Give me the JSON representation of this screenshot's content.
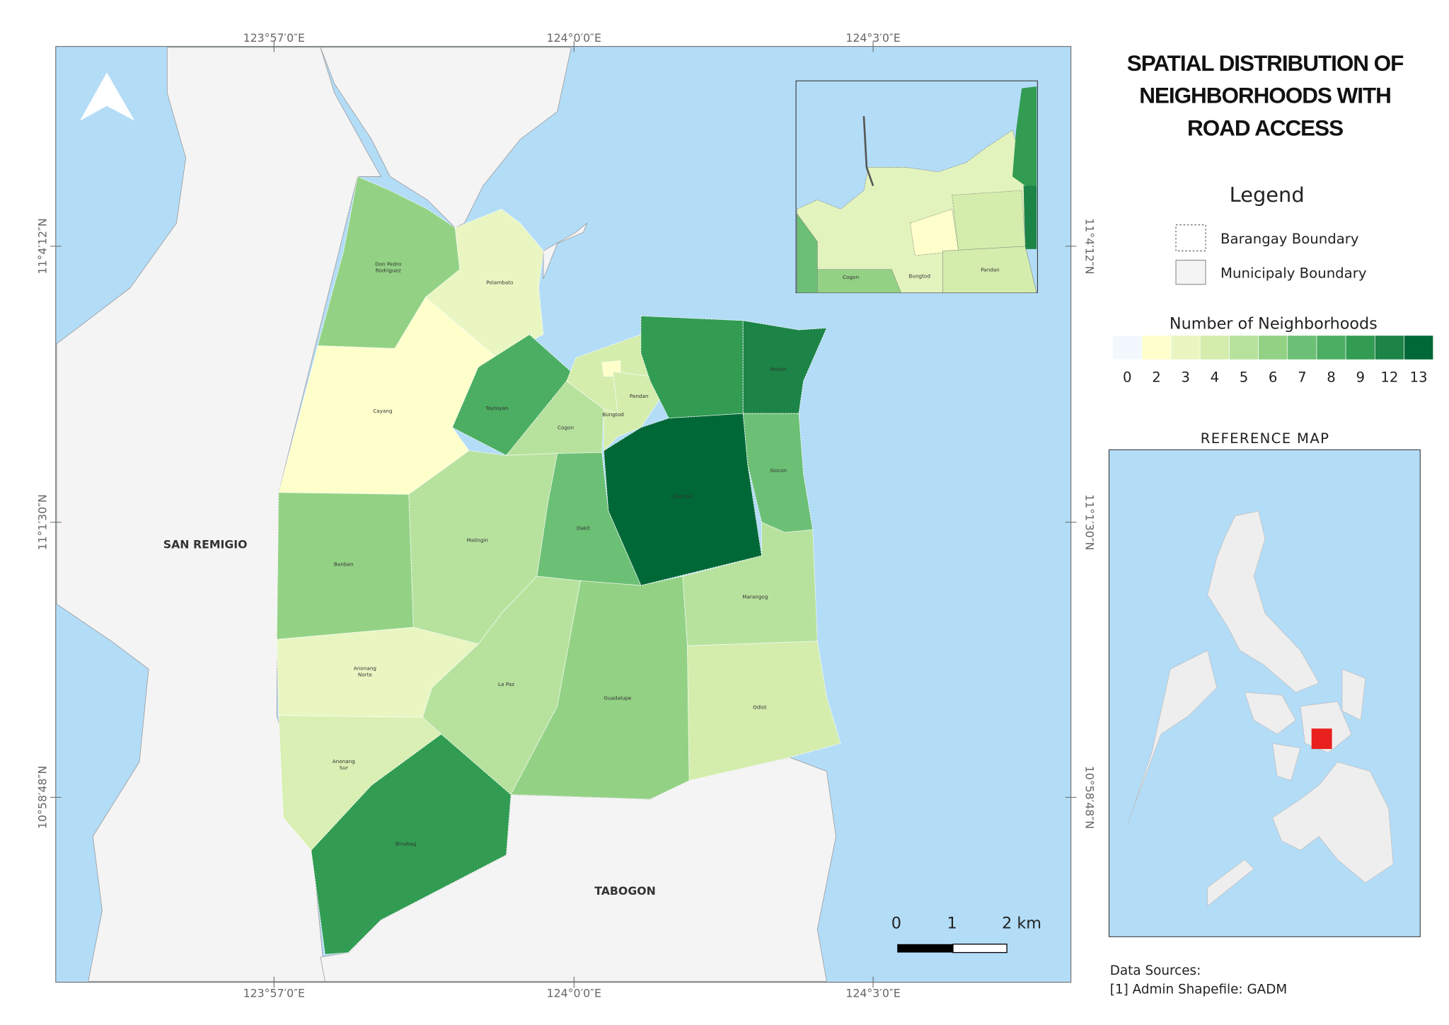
{
  "header": {
    "title": [
      "SPATIAL DISTRIBUTION OF",
      "NEIGHBORHOODS WITH",
      "ROAD ACCESS"
    ]
  },
  "legend": {
    "title": "Legend",
    "items": [
      "Barangay Boundary",
      "Municipaly Boundary"
    ]
  },
  "color_scale": {
    "title": "Number of Neighborhoods",
    "labels": [
      0,
      2,
      3,
      4,
      5,
      6,
      7,
      8,
      9,
      12,
      13
    ],
    "colors": [
      "#f3f8fe",
      "#ffffcc",
      "#e9f6c2",
      "#d4edad",
      "#b7e29e",
      "#93d284",
      "#6cc075",
      "#4cae62",
      "#319c52",
      "#1c8446",
      "#006837"
    ]
  },
  "reference_map": {
    "title": "REFERENCE MAP"
  },
  "data_sources": [
    "Data Sources:",
    "[1] Admin Shapefile: GADM"
  ],
  "coordinates": {
    "longitudes": [
      "123°57′0″E",
      "124°0′0″E",
      "124°3′0″E"
    ],
    "latitudes": [
      "11°4′12″N",
      "11°1′30″N",
      "10°58′48″N"
    ]
  },
  "map": {
    "municipalities": [
      "SAN REMIGIO",
      "TABOGON"
    ],
    "barangays": [
      [
        "Don Pedro",
        "Rodriguez"
      ],
      [
        "Polambato"
      ],
      [
        "Cayang"
      ],
      [
        "Taytayan"
      ],
      [
        "Cogon"
      ],
      [
        "Bungtod"
      ],
      [
        "Pandan"
      ],
      [
        "Nailon"
      ],
      [
        "Libertad"
      ],
      [
        "Siocon"
      ],
      [
        "Dakit"
      ],
      [
        "Malingin"
      ],
      [
        "Banban"
      ],
      [
        "Marangog"
      ],
      [
        "Anonang",
        "Norte"
      ],
      [
        "La Paz"
      ],
      [
        "Guadalupe"
      ],
      [
        "Odlot"
      ],
      [
        "Anonang",
        "Sur"
      ],
      [
        "Binabag"
      ]
    ]
  },
  "inset": {
    "labels": [
      "Cogon",
      "Bungtod",
      "Pandan"
    ]
  },
  "scale_bar": {
    "labels": [
      "0",
      "1",
      "2 km"
    ]
  }
}
